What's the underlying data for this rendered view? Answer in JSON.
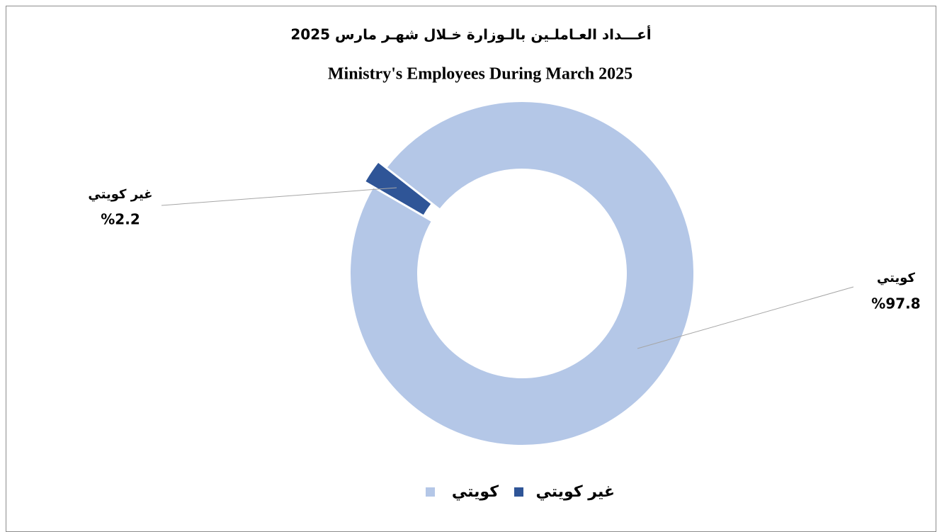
{
  "chart_data": {
    "type": "donut",
    "title": "أعـــداد العـاملـين بالـوزارة خـلال شهـر مارس 2025",
    "subtitle": "Ministry's Employees During March 2025",
    "categories": [
      "كويتي",
      "غير كويتي"
    ],
    "values": [
      97.8,
      2.2
    ],
    "value_labels": [
      "%97.8",
      "%2.2"
    ],
    "colors": [
      "#b4c7e7",
      "#2f5597"
    ],
    "legend": "bottom"
  }
}
